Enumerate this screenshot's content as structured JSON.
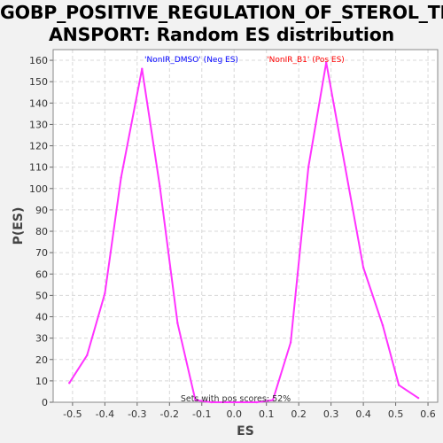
{
  "chart_data": {
    "type": "line",
    "title_lines": [
      "GOBP_POSITIVE_REGULATION_OF_STEROL_TR",
      "ANSPORT: Random ES distribution"
    ],
    "xlabel": "ES",
    "ylabel": "P(ES)",
    "xlim": [
      -0.56,
      0.63
    ],
    "ylim": [
      0,
      165
    ],
    "x_ticks": [
      "-0.5",
      "-0.4",
      "-0.3",
      "-0.2",
      "-0.1",
      "0.0",
      "0.1",
      "0.2",
      "0.3",
      "0.4",
      "0.5",
      "0.6"
    ],
    "y_ticks": [
      "0",
      "10",
      "20",
      "30",
      "40",
      "50",
      "60",
      "70",
      "80",
      "90",
      "100",
      "110",
      "120",
      "130",
      "140",
      "150",
      "160"
    ],
    "grid": true,
    "annotations": {
      "neg_label": "'NonIR_DMSO' (Neg ES)",
      "pos_label": "'NonIR_B1' (Pos ES)",
      "footer": "Sets with pos scores: 52%"
    },
    "colors": {
      "series": "#ff33ff",
      "neg_label": "#0000ff",
      "pos_label": "#ff0000",
      "plot_bg": "#ffffff",
      "page_bg": "#f2f2f2",
      "grid": "#d8d8d8"
    },
    "series": [
      {
        "x": [
          -0.51,
          -0.455,
          -0.4,
          -0.35,
          -0.285,
          -0.23,
          -0.175,
          -0.12,
          -0.07,
          0.0,
          0.07,
          0.12,
          0.175,
          0.23,
          0.285,
          0.4,
          0.46,
          0.51,
          0.57
        ],
        "y": [
          9,
          22,
          51,
          105,
          156,
          101,
          37,
          1,
          0,
          0,
          0,
          1,
          28,
          110,
          159,
          63,
          36,
          8,
          2
        ]
      }
    ]
  }
}
